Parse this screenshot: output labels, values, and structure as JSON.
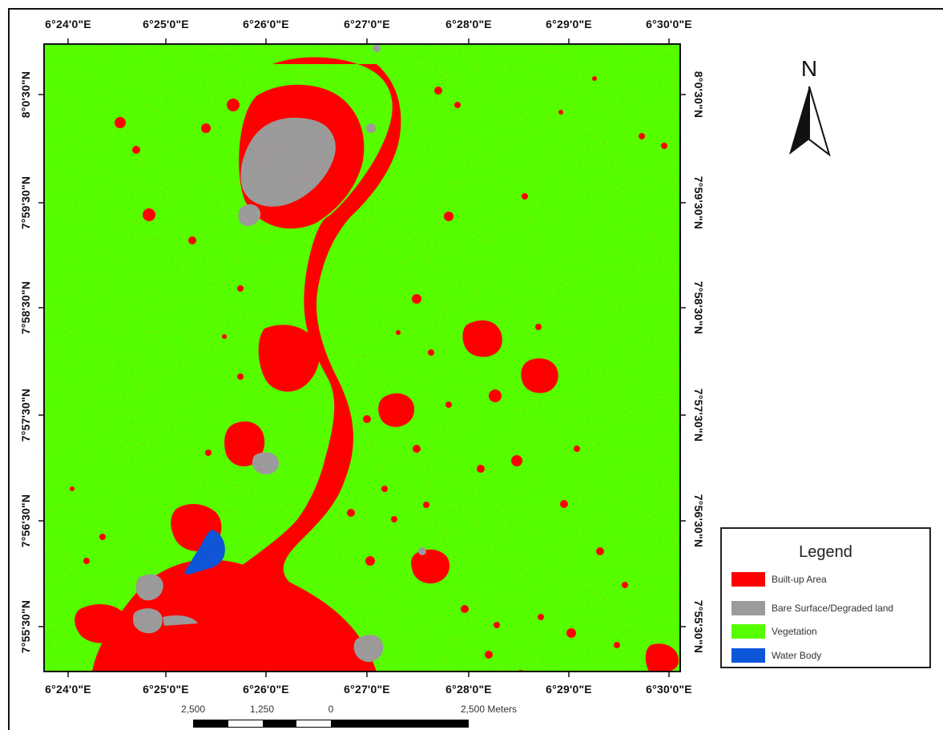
{
  "map": {
    "colors": {
      "built_up": "#ff0000",
      "bare_surface": "#9b9b9b",
      "vegetation": "#55ff00",
      "water": "#0d56d9"
    },
    "top_ticks": [
      "6°24'0\"E",
      "6°25'0\"E",
      "6°26'0\"E",
      "6°27'0\"E",
      "6°28'0\"E",
      "6°29'0\"E",
      "6°30'0\"E"
    ],
    "bottom_ticks": [
      "6°24'0\"E",
      "6°25'0\"E",
      "6°26'0\"E",
      "6°27'0\"E",
      "6°28'0\"E",
      "6°29'0\"E",
      "6°30'0\"E"
    ],
    "left_ticks": [
      "8°0'30\"N",
      "7°59'30\"N",
      "7°58'30\"N",
      "7°57'30\"N",
      "7°56'30\"N",
      "7°55'30\"N"
    ],
    "right_ticks": [
      "8°0'30\"N",
      "7°59'30\"N",
      "7°58'30\"N",
      "7°57'30\"N",
      "7°56'30\"N",
      "7°55'30\"N"
    ]
  },
  "north_arrow": {
    "label": "N",
    "icon": "north-arrow-icon"
  },
  "legend": {
    "title": "Legend",
    "items": [
      {
        "label": "Built-up Area",
        "color": "#ff0000"
      },
      {
        "label": "Bare Surface/Degraded land",
        "color": "#9b9b9b"
      },
      {
        "label": "Vegetation",
        "color": "#55ff00"
      },
      {
        "label": "Water Body",
        "color": "#0d56d9"
      }
    ]
  },
  "scale": {
    "labels": [
      "2,500",
      "1,250",
      "0",
      "2,500 Meters"
    ]
  }
}
